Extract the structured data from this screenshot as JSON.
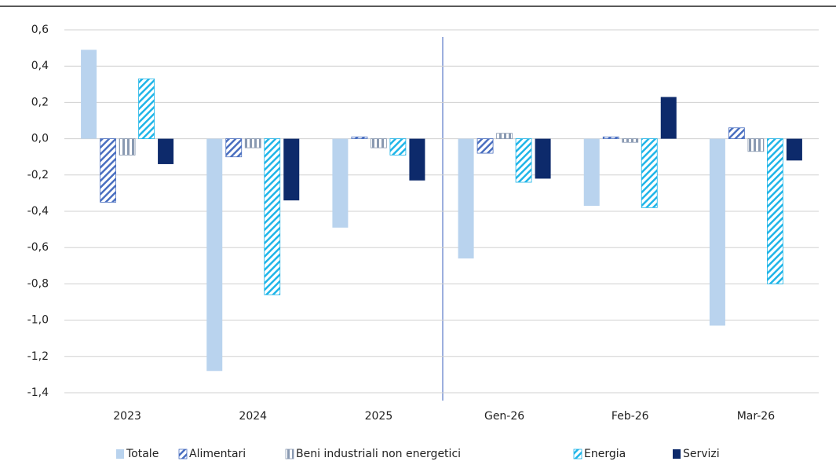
{
  "chart_data": {
    "type": "bar",
    "categories": [
      "2023",
      "2024",
      "2025",
      "Gen-26",
      "Feb-26",
      "Mar-26"
    ],
    "series": [
      {
        "name": "Totale",
        "color": "#b9d3ee",
        "hatch": "none",
        "values": [
          0.49,
          -1.28,
          -0.49,
          -0.66,
          -0.37,
          -1.03
        ]
      },
      {
        "name": "Alimentari",
        "color": "#4a6fc0",
        "hatch": "diagonal",
        "values": [
          -0.35,
          -0.1,
          0.01,
          -0.08,
          0.01,
          0.06
        ]
      },
      {
        "name": "Beni industriali non energetici",
        "color": "#8a9ab2",
        "hatch": "vertical",
        "values": [
          -0.09,
          -0.05,
          -0.05,
          0.03,
          -0.02,
          -0.07
        ]
      },
      {
        "name": "Energia",
        "color": "#1fb5e8",
        "hatch": "diagonal",
        "values": [
          0.33,
          -0.86,
          -0.09,
          -0.24,
          -0.38,
          -0.8
        ]
      },
      {
        "name": "Servizi",
        "color": "#0d2a6b",
        "hatch": "none",
        "values": [
          -0.14,
          -0.34,
          -0.23,
          -0.22,
          0.23,
          -0.12
        ]
      }
    ],
    "ylim": [
      -1.4,
      0.6
    ],
    "yticks": [
      {
        "value": -1.4,
        "label": "-1,4"
      },
      {
        "value": -1.2,
        "label": "-1,2"
      },
      {
        "value": -1.0,
        "label": "-1,0"
      },
      {
        "value": -0.8,
        "label": "-0,8"
      },
      {
        "value": -0.6,
        "label": "-0,6"
      },
      {
        "value": -0.4,
        "label": "-0,4"
      },
      {
        "value": -0.2,
        "label": "-0,2"
      },
      {
        "value": 0,
        "label": "0,0"
      },
      {
        "value": 0.2,
        "label": "0,2"
      },
      {
        "value": 0.4,
        "label": "0,4"
      },
      {
        "value": 0.6,
        "label": "0,6"
      }
    ],
    "grid": true
  }
}
